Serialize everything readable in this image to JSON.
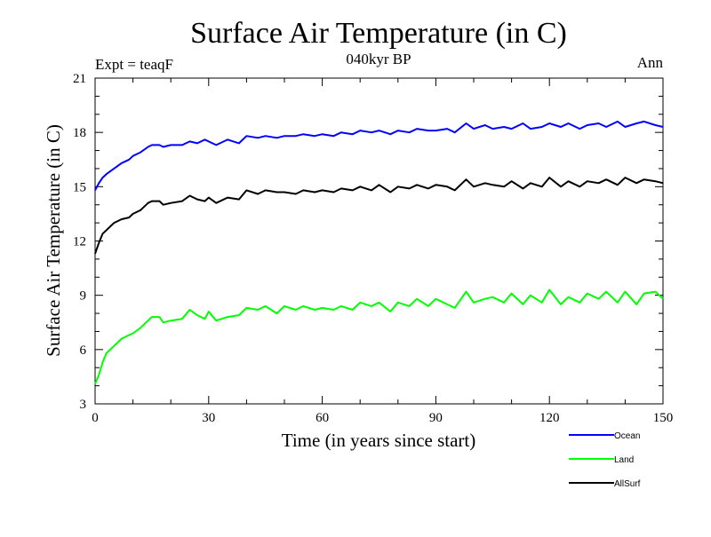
{
  "chart_data": {
    "type": "line",
    "title": "Surface Air Temperature (in C)",
    "subtitle": "040kyr BP",
    "left_label": "Expt = teaqF",
    "right_label": "Ann",
    "xlabel": "Time (in years since start)",
    "ylabel": "Surface Air Temperature (in C)",
    "xlim": [
      0,
      150
    ],
    "ylim": [
      3,
      21
    ],
    "xticks": [
      0,
      30,
      60,
      90,
      120,
      150
    ],
    "yticks": [
      3,
      6,
      9,
      12,
      15,
      18,
      21
    ],
    "x_minor_step": 10,
    "y_minor_step": 1,
    "legend_position": "below-right",
    "series": [
      {
        "name": "Ocean",
        "color": "#0000ff",
        "x": [
          0,
          1,
          2,
          3,
          5,
          7,
          9,
          10,
          12,
          14,
          15,
          17,
          18,
          20,
          23,
          25,
          27,
          29,
          30,
          32,
          35,
          38,
          40,
          43,
          45,
          48,
          50,
          53,
          55,
          58,
          60,
          63,
          65,
          68,
          70,
          73,
          75,
          78,
          80,
          83,
          85,
          88,
          90,
          93,
          95,
          98,
          100,
          103,
          105,
          108,
          110,
          113,
          115,
          118,
          120,
          123,
          125,
          128,
          130,
          133,
          135,
          138,
          140,
          143,
          145,
          148,
          150
        ],
        "y": [
          14.8,
          15.2,
          15.5,
          15.7,
          16.0,
          16.3,
          16.5,
          16.7,
          16.9,
          17.2,
          17.3,
          17.3,
          17.2,
          17.3,
          17.3,
          17.5,
          17.4,
          17.6,
          17.5,
          17.3,
          17.6,
          17.4,
          17.8,
          17.7,
          17.8,
          17.7,
          17.8,
          17.8,
          17.9,
          17.8,
          17.9,
          17.8,
          18.0,
          17.9,
          18.1,
          18.0,
          18.1,
          17.9,
          18.1,
          18.0,
          18.2,
          18.1,
          18.1,
          18.2,
          18.0,
          18.5,
          18.2,
          18.4,
          18.2,
          18.3,
          18.2,
          18.5,
          18.2,
          18.3,
          18.5,
          18.3,
          18.5,
          18.2,
          18.4,
          18.5,
          18.3,
          18.6,
          18.3,
          18.5,
          18.6,
          18.4,
          18.3
        ]
      },
      {
        "name": "Land",
        "color": "#00ff00",
        "x": [
          0,
          1,
          2,
          3,
          5,
          7,
          9,
          10,
          12,
          14,
          15,
          17,
          18,
          20,
          23,
          25,
          27,
          29,
          30,
          32,
          35,
          38,
          40,
          43,
          45,
          48,
          50,
          53,
          55,
          58,
          60,
          63,
          65,
          68,
          70,
          73,
          75,
          78,
          80,
          83,
          85,
          88,
          90,
          93,
          95,
          98,
          100,
          103,
          105,
          108,
          110,
          113,
          115,
          118,
          120,
          123,
          125,
          128,
          130,
          133,
          135,
          138,
          140,
          143,
          145,
          148,
          150
        ],
        "y": [
          4.1,
          4.6,
          5.3,
          5.8,
          6.2,
          6.6,
          6.8,
          6.9,
          7.2,
          7.6,
          7.8,
          7.8,
          7.5,
          7.6,
          7.7,
          8.2,
          7.9,
          7.7,
          8.1,
          7.6,
          7.8,
          7.9,
          8.3,
          8.2,
          8.4,
          8.0,
          8.4,
          8.2,
          8.4,
          8.2,
          8.3,
          8.2,
          8.4,
          8.2,
          8.6,
          8.4,
          8.6,
          8.1,
          8.6,
          8.4,
          8.8,
          8.4,
          8.8,
          8.5,
          8.3,
          9.2,
          8.6,
          8.8,
          8.9,
          8.6,
          9.1,
          8.5,
          9.0,
          8.6,
          9.3,
          8.5,
          8.9,
          8.6,
          9.1,
          8.8,
          9.2,
          8.6,
          9.2,
          8.5,
          9.1,
          9.2,
          8.8
        ]
      },
      {
        "name": "AllSurf",
        "color": "#000000",
        "x": [
          0,
          1,
          2,
          3,
          5,
          7,
          9,
          10,
          12,
          14,
          15,
          17,
          18,
          20,
          23,
          25,
          27,
          29,
          30,
          32,
          35,
          38,
          40,
          43,
          45,
          48,
          50,
          53,
          55,
          58,
          60,
          63,
          65,
          68,
          70,
          73,
          75,
          78,
          80,
          83,
          85,
          88,
          90,
          93,
          95,
          98,
          100,
          103,
          105,
          108,
          110,
          113,
          115,
          118,
          120,
          123,
          125,
          128,
          130,
          133,
          135,
          138,
          140,
          143,
          145,
          148,
          150
        ],
        "y": [
          11.3,
          11.9,
          12.4,
          12.6,
          13.0,
          13.2,
          13.3,
          13.5,
          13.7,
          14.1,
          14.2,
          14.2,
          14.0,
          14.1,
          14.2,
          14.5,
          14.3,
          14.2,
          14.4,
          14.1,
          14.4,
          14.3,
          14.8,
          14.6,
          14.8,
          14.7,
          14.7,
          14.6,
          14.8,
          14.7,
          14.8,
          14.7,
          14.9,
          14.8,
          15.0,
          14.8,
          15.1,
          14.7,
          15.0,
          14.9,
          15.1,
          14.9,
          15.1,
          15.0,
          14.8,
          15.4,
          15.0,
          15.2,
          15.1,
          15.0,
          15.3,
          14.9,
          15.2,
          15.0,
          15.5,
          15.0,
          15.3,
          15.0,
          15.3,
          15.2,
          15.4,
          15.1,
          15.5,
          15.2,
          15.4,
          15.3,
          15.2
        ]
      }
    ]
  }
}
